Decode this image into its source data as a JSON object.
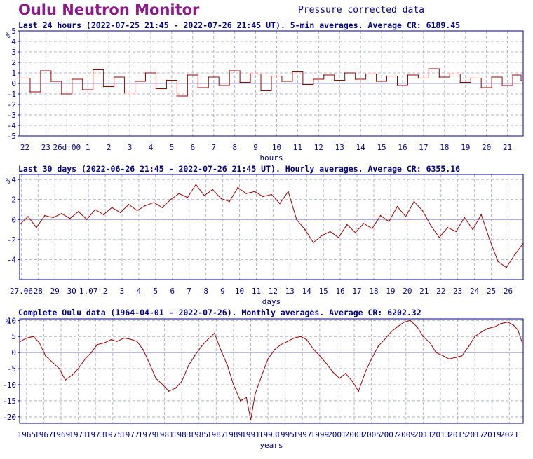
{
  "header": {
    "title": "Oulu Neutron Monitor",
    "subtitle": "Pressure corrected data"
  },
  "colors": {
    "title": "#8b1a8b",
    "text": "#00008b",
    "line": "#a00000",
    "grid": "#b4b4d2",
    "frame": "#00008b"
  },
  "chart_data": [
    {
      "type": "line",
      "heading": "Last 24 hours (2022-07-25 21:45 - 2022-07-26 21:45 UT). 5-min averages. Average CR: 6189.45",
      "ylabel": "%",
      "xlabel": "hours",
      "ylim": [
        -5,
        5
      ],
      "yticks": [
        -5,
        -4,
        -3,
        -2,
        -1,
        0,
        1,
        2,
        3,
        4,
        5
      ],
      "xlim": [
        0,
        24
      ],
      "xticks": [
        {
          "x": 0.25,
          "label": "22"
        },
        {
          "x": 1.25,
          "label": "23"
        },
        {
          "x": 2.25,
          "label": "26d:00"
        },
        {
          "x": 3.25,
          "label": "1"
        },
        {
          "x": 4.25,
          "label": "2"
        },
        {
          "x": 5.25,
          "label": "3"
        },
        {
          "x": 6.25,
          "label": "4"
        },
        {
          "x": 7.25,
          "label": "5"
        },
        {
          "x": 8.25,
          "label": "6"
        },
        {
          "x": 9.25,
          "label": "7"
        },
        {
          "x": 10.25,
          "label": "8"
        },
        {
          "x": 11.25,
          "label": "9"
        },
        {
          "x": 12.25,
          "label": "10"
        },
        {
          "x": 13.25,
          "label": "11"
        },
        {
          "x": 14.25,
          "label": "12"
        },
        {
          "x": 15.25,
          "label": "13"
        },
        {
          "x": 16.25,
          "label": "14"
        },
        {
          "x": 17.25,
          "label": "15"
        },
        {
          "x": 18.25,
          "label": "16"
        },
        {
          "x": 19.25,
          "label": "17"
        },
        {
          "x": 20.25,
          "label": "18"
        },
        {
          "x": 21.25,
          "label": "19"
        },
        {
          "x": 22.25,
          "label": "20"
        },
        {
          "x": 23.25,
          "label": "21"
        }
      ],
      "grid": true,
      "series": [
        {
          "style": "step",
          "x": [
            0,
            0.5,
            1,
            1.5,
            2,
            2.5,
            3,
            3.5,
            4,
            4.5,
            5,
            5.5,
            6,
            6.5,
            7,
            7.5,
            8,
            8.5,
            9,
            9.5,
            10,
            10.5,
            11,
            11.5,
            12,
            12.5,
            13,
            13.5,
            14,
            14.5,
            15,
            15.5,
            16,
            16.5,
            17,
            17.5,
            18,
            18.5,
            19,
            19.5,
            20,
            20.5,
            21,
            21.5,
            22,
            22.5,
            23,
            23.5,
            23.9
          ],
          "y": [
            0.5,
            -0.8,
            1.2,
            0.2,
            -1.0,
            0.4,
            -0.6,
            1.3,
            -0.3,
            0.6,
            -0.9,
            0.2,
            1.0,
            -0.5,
            0.3,
            -1.2,
            0.8,
            -0.4,
            0.6,
            -0.2,
            1.2,
            0.1,
            0.9,
            -0.7,
            0.7,
            0.2,
            1.1,
            -0.1,
            0.4,
            0.8,
            0.3,
            1.0,
            0.4,
            0.9,
            0.2,
            0.7,
            -0.2,
            0.8,
            0.5,
            1.4,
            0.6,
            0.9,
            0.1,
            0.5,
            -0.4,
            0.6,
            -0.2,
            0.8,
            0.3
          ]
        }
      ]
    },
    {
      "type": "line",
      "heading": "Last 30 days (2022-06-26 21:45 - 2022-07-26 21:45 UT). Hourly averages. Average CR: 6355.16",
      "ylabel": "%",
      "xlabel": "days",
      "ylim": [
        -6,
        4.5
      ],
      "yticks": [
        -4,
        -2,
        0,
        2,
        4
      ],
      "xlim": [
        0,
        30
      ],
      "xticks": [
        {
          "x": 0.1,
          "label": "27.06"
        },
        {
          "x": 1.1,
          "label": "28"
        },
        {
          "x": 2.1,
          "label": "29"
        },
        {
          "x": 3.1,
          "label": "30"
        },
        {
          "x": 4.1,
          "label": "1.07"
        },
        {
          "x": 5.1,
          "label": "2"
        },
        {
          "x": 6.1,
          "label": "3"
        },
        {
          "x": 7.1,
          "label": "4"
        },
        {
          "x": 8.1,
          "label": "5"
        },
        {
          "x": 9.1,
          "label": "6"
        },
        {
          "x": 10.1,
          "label": "7"
        },
        {
          "x": 11.1,
          "label": "8"
        },
        {
          "x": 12.1,
          "label": "9"
        },
        {
          "x": 13.1,
          "label": "10"
        },
        {
          "x": 14.1,
          "label": "11"
        },
        {
          "x": 15.1,
          "label": "12"
        },
        {
          "x": 16.1,
          "label": "13"
        },
        {
          "x": 17.1,
          "label": "14"
        },
        {
          "x": 18.1,
          "label": "15"
        },
        {
          "x": 19.1,
          "label": "16"
        },
        {
          "x": 20.1,
          "label": "17"
        },
        {
          "x": 21.1,
          "label": "18"
        },
        {
          "x": 22.1,
          "label": "19"
        },
        {
          "x": 23.1,
          "label": "20"
        },
        {
          "x": 24.1,
          "label": "21"
        },
        {
          "x": 25.1,
          "label": "22"
        },
        {
          "x": 26.1,
          "label": "23"
        },
        {
          "x": 27.1,
          "label": "24"
        },
        {
          "x": 28.1,
          "label": "25"
        },
        {
          "x": 29.1,
          "label": "26"
        }
      ],
      "grid": true,
      "series": [
        {
          "style": "line",
          "x": [
            0,
            0.5,
            1,
            1.5,
            2,
            2.5,
            3,
            3.5,
            4,
            4.5,
            5,
            5.5,
            6,
            6.5,
            7,
            7.5,
            8,
            8.5,
            9,
            9.5,
            10,
            10.5,
            11,
            11.5,
            12,
            12.5,
            13,
            13.5,
            14,
            14.5,
            15,
            15.5,
            16,
            16.5,
            17,
            17.5,
            18,
            18.5,
            19,
            19.5,
            20,
            20.5,
            21,
            21.5,
            22,
            22.5,
            23,
            23.5,
            24,
            24.5,
            25,
            25.5,
            26,
            26.5,
            27,
            27.5,
            28,
            28.5,
            29,
            29.5,
            30
          ],
          "y": [
            -0.5,
            0.3,
            -0.8,
            0.4,
            0.2,
            0.6,
            0.1,
            0.8,
            0.0,
            1.0,
            0.5,
            1.2,
            0.7,
            1.5,
            0.9,
            1.4,
            1.7,
            1.2,
            2.0,
            2.6,
            2.2,
            3.5,
            2.4,
            3.0,
            2.1,
            1.8,
            3.2,
            2.6,
            2.8,
            2.3,
            2.5,
            1.6,
            2.8,
            0.0,
            -1.0,
            -2.3,
            -1.6,
            -1.2,
            -1.8,
            -0.5,
            -1.3,
            -0.4,
            -0.9,
            0.4,
            -0.2,
            1.3,
            0.3,
            1.8,
            0.9,
            -0.6,
            -1.8,
            -0.8,
            -1.2,
            0.2,
            -1.0,
            0.5,
            -2.0,
            -4.2,
            -4.8,
            -3.5,
            -2.4
          ]
        }
      ]
    },
    {
      "type": "line",
      "heading": "Complete Oulu data (1964-04-01 - 2022-07-26). Monthly averages. Average CR: 6202.32",
      "ylabel": "%",
      "xlabel": "years",
      "ylim": [
        -22,
        10.5
      ],
      "yticks": [
        -20,
        -15,
        -10,
        -5,
        0,
        5,
        10
      ],
      "xlim": [
        1964.2,
        2022.6
      ],
      "xticks": [
        {
          "x": 1965,
          "label": "1965"
        },
        {
          "x": 1967,
          "label": "1967"
        },
        {
          "x": 1969,
          "label": "1969"
        },
        {
          "x": 1971,
          "label": "1971"
        },
        {
          "x": 1973,
          "label": "1973"
        },
        {
          "x": 1975,
          "label": "1975"
        },
        {
          "x": 1977,
          "label": "1977"
        },
        {
          "x": 1979,
          "label": "1979"
        },
        {
          "x": 1981,
          "label": "1981"
        },
        {
          "x": 1983,
          "label": "1983"
        },
        {
          "x": 1985,
          "label": "1985"
        },
        {
          "x": 1987,
          "label": "1987"
        },
        {
          "x": 1989,
          "label": "1989"
        },
        {
          "x": 1991,
          "label": "1991"
        },
        {
          "x": 1993,
          "label": "1993"
        },
        {
          "x": 1995,
          "label": "1995"
        },
        {
          "x": 1997,
          "label": "1997"
        },
        {
          "x": 1999,
          "label": "1999"
        },
        {
          "x": 2001,
          "label": "2001"
        },
        {
          "x": 2003,
          "label": "2003"
        },
        {
          "x": 2005,
          "label": "2005"
        },
        {
          "x": 2007,
          "label": "2007"
        },
        {
          "x": 2009,
          "label": "2009"
        },
        {
          "x": 2011,
          "label": "2011"
        },
        {
          "x": 2013,
          "label": "2013"
        },
        {
          "x": 2015,
          "label": "2015"
        },
        {
          "x": 2017,
          "label": "2017"
        },
        {
          "x": 2019,
          "label": "2019"
        },
        {
          "x": 2021,
          "label": "2021"
        }
      ],
      "grid": true,
      "series": [
        {
          "style": "line",
          "x": [
            1964.3,
            1965.0,
            1965.8,
            1966.5,
            1967.2,
            1968.0,
            1968.8,
            1969.5,
            1970.3,
            1971.0,
            1971.8,
            1972.5,
            1973.2,
            1974.0,
            1974.8,
            1975.5,
            1976.3,
            1977.0,
            1977.8,
            1978.5,
            1979.2,
            1980.0,
            1980.8,
            1981.5,
            1982.3,
            1983.0,
            1983.8,
            1984.5,
            1985.3,
            1986.0,
            1986.8,
            1987.5,
            1988.3,
            1989.0,
            1989.8,
            1990.5,
            1991.0,
            1991.5,
            1992.3,
            1993.0,
            1993.8,
            1994.5,
            1995.3,
            1996.0,
            1996.8,
            1997.5,
            1998.3,
            1999.0,
            1999.8,
            2000.5,
            2001.3,
            2002.0,
            2002.8,
            2003.5,
            2004.3,
            2005.0,
            2005.8,
            2006.5,
            2007.3,
            2008.0,
            2008.8,
            2009.5,
            2010.3,
            2011.0,
            2011.8,
            2012.5,
            2013.3,
            2014.0,
            2014.8,
            2015.5,
            2016.3,
            2017.0,
            2017.8,
            2018.5,
            2019.3,
            2020.0,
            2020.8,
            2021.5,
            2022.0,
            2022.5
          ],
          "y": [
            3.5,
            4.5,
            5.0,
            3.0,
            -1.0,
            -3.0,
            -5.0,
            -8.5,
            -7.0,
            -5.0,
            -2.0,
            0.0,
            2.5,
            3.0,
            4.0,
            3.5,
            4.5,
            4.2,
            3.5,
            1.0,
            -3.0,
            -8.0,
            -10.0,
            -12.0,
            -11.0,
            -9.0,
            -4.0,
            -1.0,
            2.0,
            4.0,
            6.0,
            1.0,
            -4.0,
            -10.0,
            -15.0,
            -14.0,
            -21.0,
            -13.0,
            -7.0,
            -2.0,
            1.0,
            2.5,
            3.5,
            4.5,
            5.0,
            4.0,
            1.0,
            -1.0,
            -3.5,
            -6.0,
            -8.0,
            -6.5,
            -9.0,
            -12.0,
            -6.0,
            -2.0,
            2.0,
            4.0,
            6.5,
            8.0,
            9.5,
            10.0,
            8.0,
            5.0,
            3.0,
            0.0,
            -1.0,
            -2.0,
            -1.5,
            -1.0,
            2.0,
            5.0,
            6.5,
            7.5,
            8.0,
            9.0,
            9.5,
            8.5,
            7.0,
            3.0
          ]
        }
      ]
    }
  ]
}
